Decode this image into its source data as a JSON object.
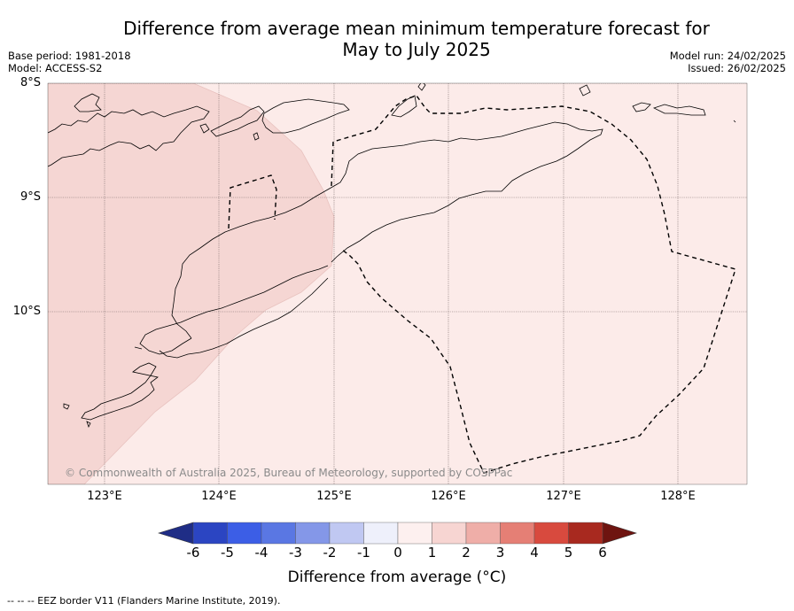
{
  "title_line1": "Difference from average mean minimum temperature forecast for",
  "title_line2": "May to July 2025",
  "base_period": "Base period: 1981-2018",
  "model": "Model: ACCESS-S2",
  "model_run": "Model run: 24/02/2025",
  "issued": "Issued: 26/02/2025",
  "lat_labels": [
    "8°S",
    "9°S",
    "10°S"
  ],
  "lon_labels": [
    "123°E",
    "124°E",
    "125°E",
    "126°E",
    "127°E",
    "128°E"
  ],
  "copyright": "© Commonwealth of Australia 2025, Bureau of Meteorology, supported by COSPPac",
  "colorbar": {
    "ticks": [
      "-6",
      "-5",
      "-4",
      "-3",
      "-2",
      "-1",
      "0",
      "1",
      "2",
      "3",
      "4",
      "5",
      "6"
    ],
    "colors": [
      "#1f2d86",
      "#2b45c2",
      "#3c5ee6",
      "#5a77e3",
      "#8497e8",
      "#c0c8f2",
      "#eef0fb",
      "#fdf0ef",
      "#f7d5d2",
      "#efaea8",
      "#e57f75",
      "#d84a3e",
      "#a8291f",
      "#6e1410"
    ],
    "label": "Difference from average (°C)"
  },
  "footnote": "-- -- -- EEZ border V11 (Flanders Marine Institute, 2019).",
  "shading": {
    "west_region_class": "1 to 2",
    "east_region_class": "0 to 1"
  }
}
